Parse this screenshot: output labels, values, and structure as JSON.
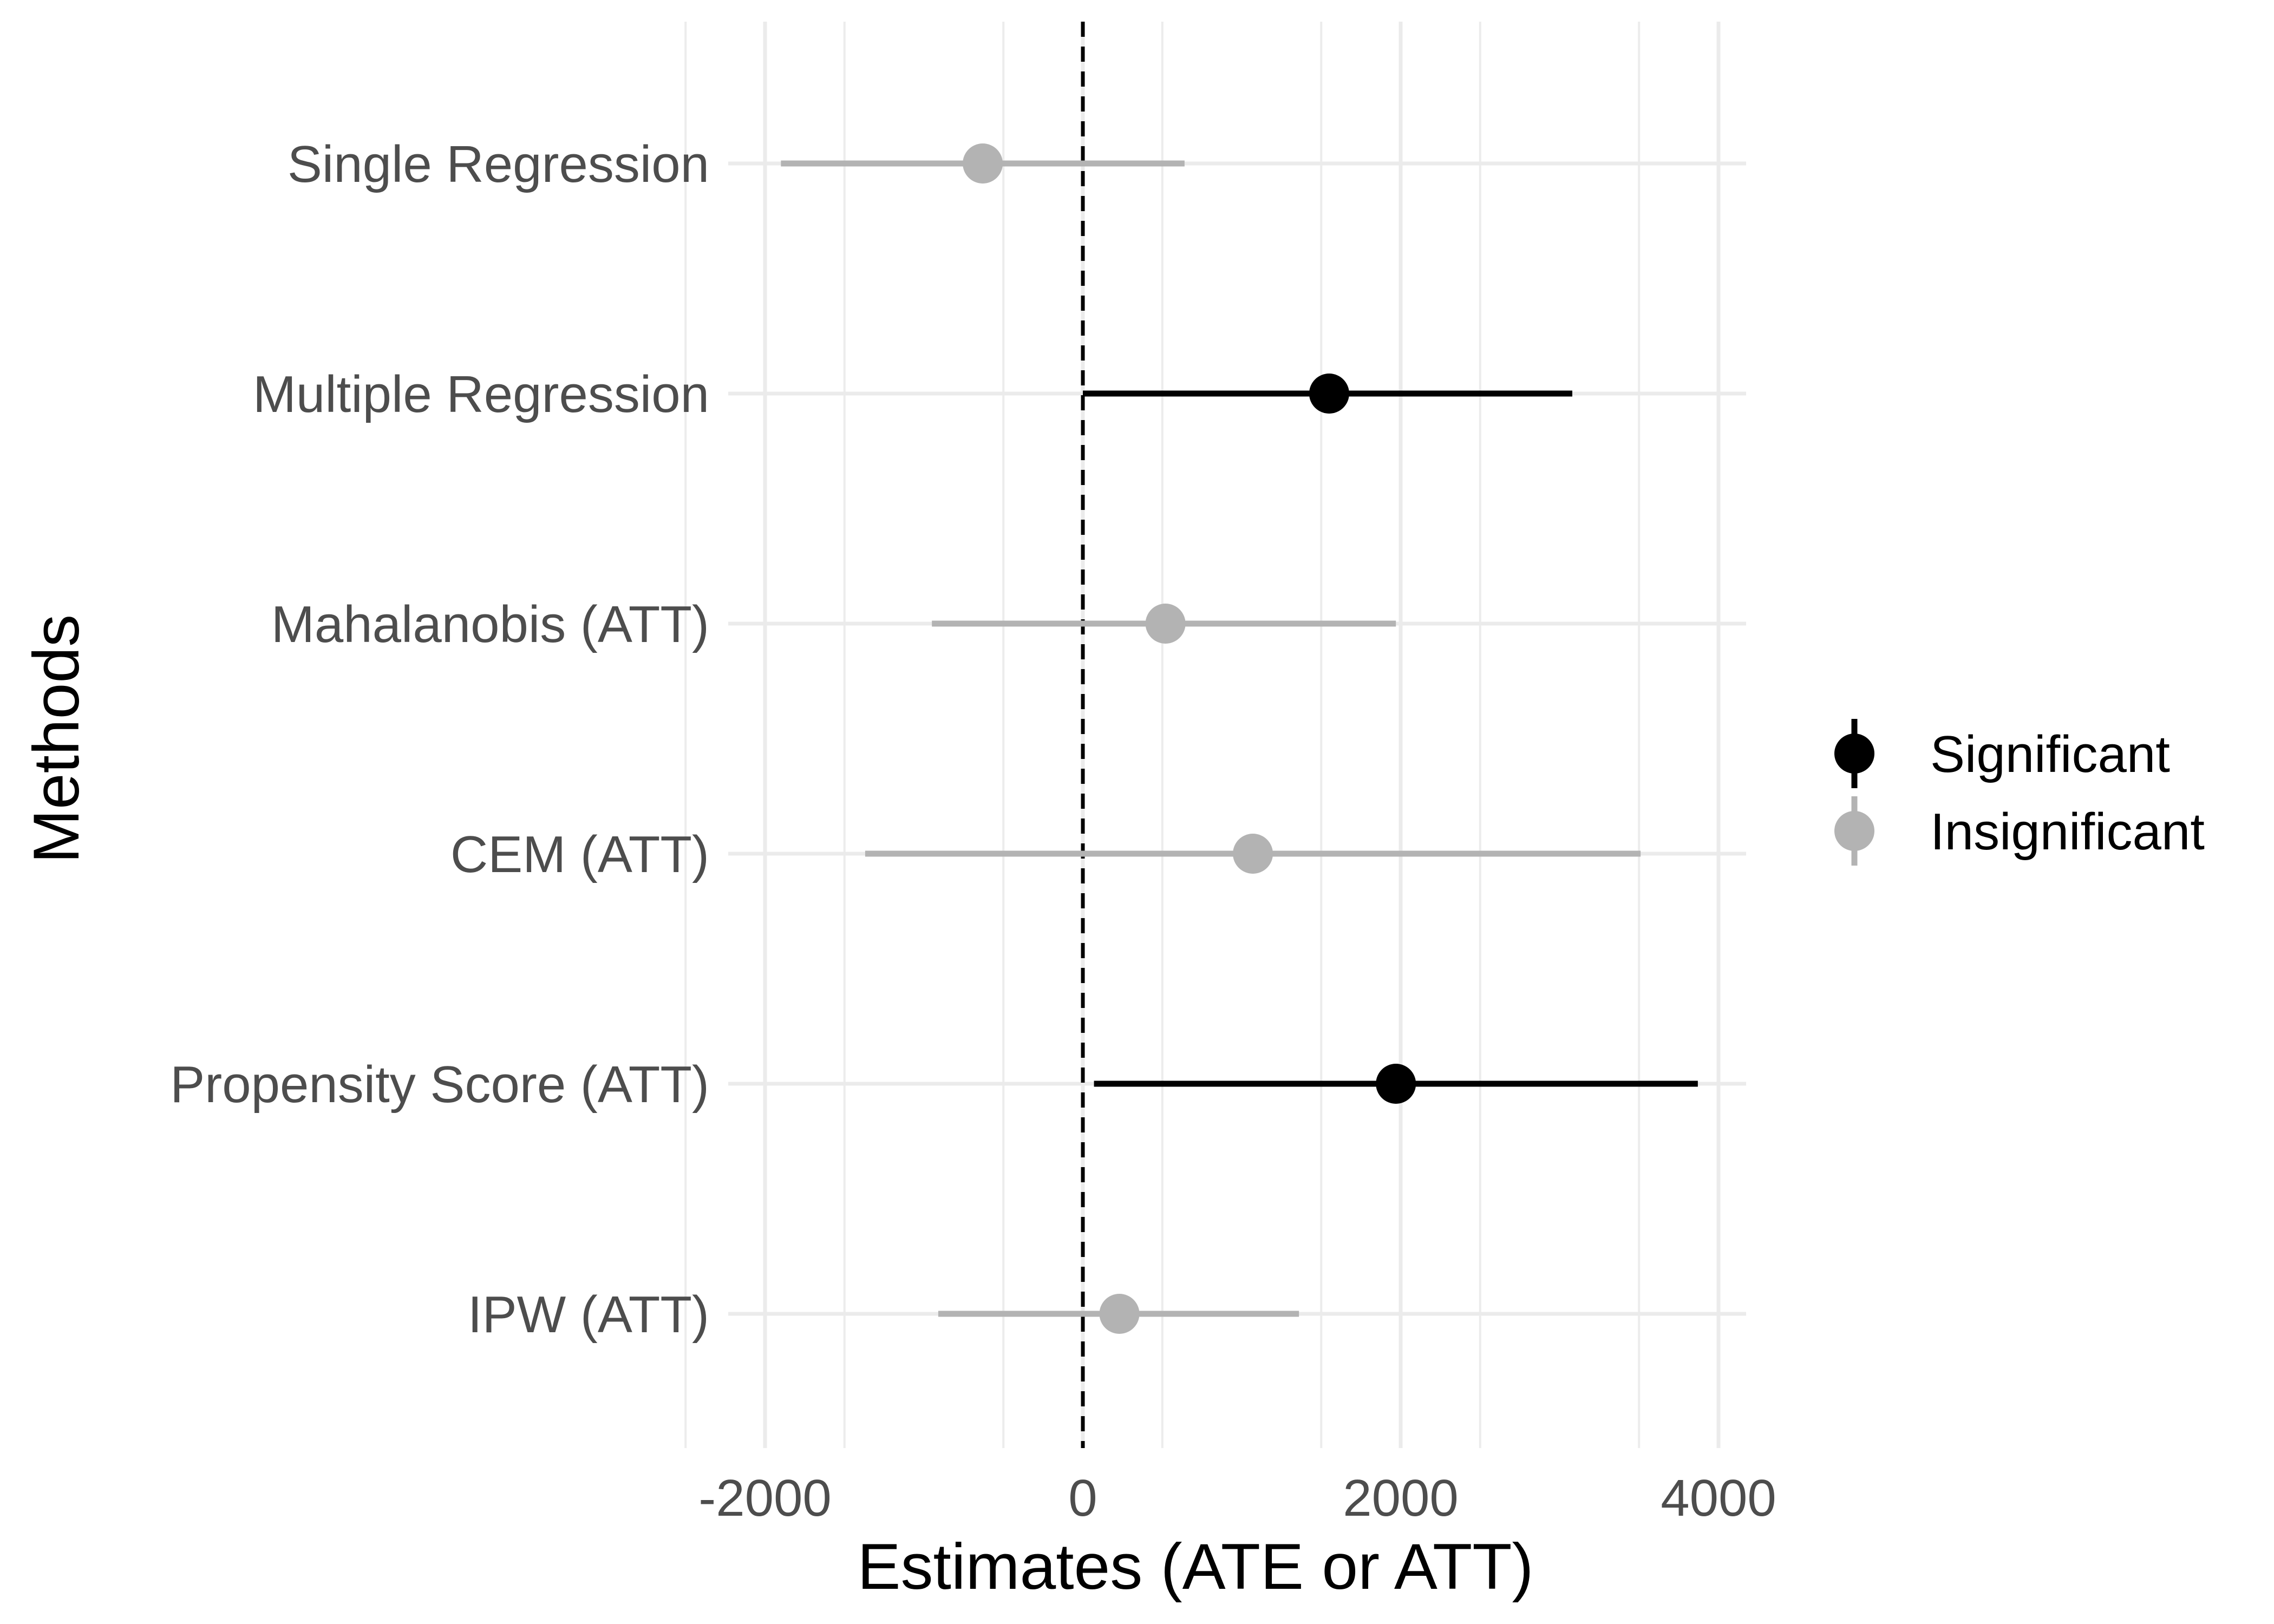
{
  "chart_data": {
    "type": "scatter",
    "subtype": "coefficient-plot",
    "title": "",
    "xlabel": "Estimates (ATE or ATT)",
    "ylabel": "Methods",
    "xlim": [
      -2500,
      4500
    ],
    "x_ticks": [
      -2000,
      0,
      2000,
      4000
    ],
    "x_tick_labels": [
      "-2000",
      "0",
      "2000",
      "4000"
    ],
    "reference_line": {
      "x": 0,
      "style": "dashed",
      "color": "#000000"
    },
    "grid": true,
    "legend_position": "right",
    "categories": [
      "Single Regression",
      "Multiple Regression",
      "Mahalanobis (ATT)",
      "CEM (ATT)",
      "Propensity Score (ATT)",
      "IPW (ATT)"
    ],
    "series": [
      {
        "name": "Significant",
        "color": "#000000"
      },
      {
        "name": "Insignificant",
        "color": "#b3b3b3"
      }
    ],
    "points": [
      {
        "category": "Single Regression",
        "estimate": -630,
        "lower": -1900,
        "upper": 640,
        "group": "Insignificant"
      },
      {
        "category": "Multiple Regression",
        "estimate": 1550,
        "lower": 0,
        "upper": 3080,
        "group": "Significant"
      },
      {
        "category": "Mahalanobis (ATT)",
        "estimate": 520,
        "lower": -950,
        "upper": 1970,
        "group": "Insignificant"
      },
      {
        "category": "CEM (ATT)",
        "estimate": 1070,
        "lower": -1370,
        "upper": 3510,
        "group": "Insignificant"
      },
      {
        "category": "Propensity Score (ATT)",
        "estimate": 1970,
        "lower": 70,
        "upper": 3870,
        "group": "Significant"
      },
      {
        "category": "IPW (ATT)",
        "estimate": 230,
        "lower": -910,
        "upper": 1360,
        "group": "Insignificant"
      }
    ]
  }
}
